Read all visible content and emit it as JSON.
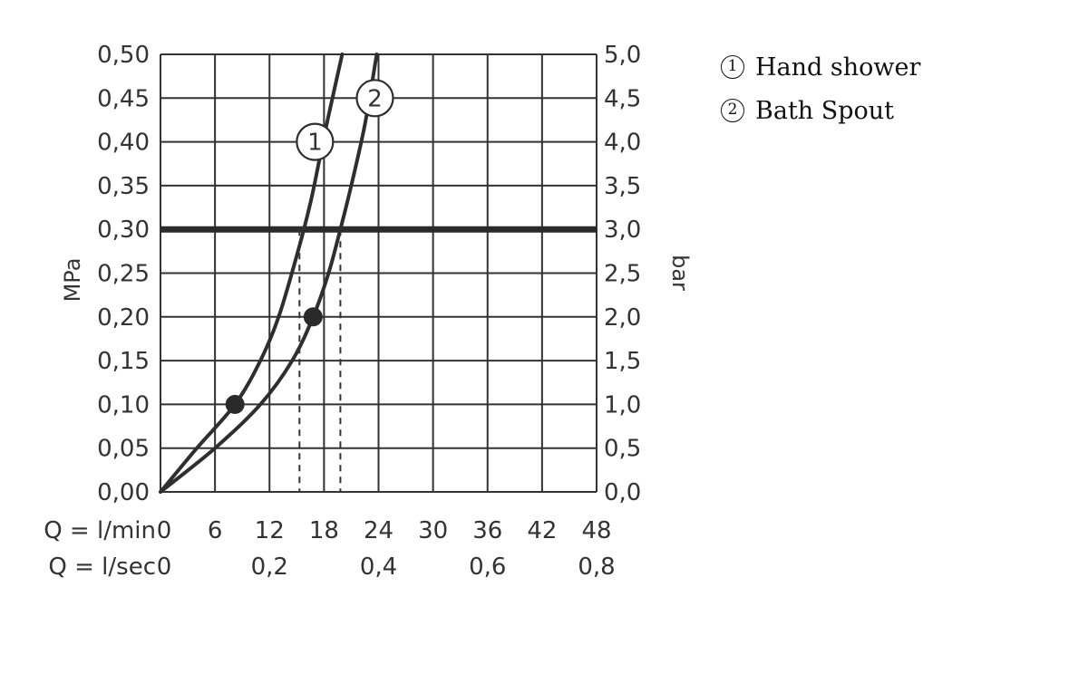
{
  "chart_data": {
    "type": "line",
    "title": "",
    "ylabel_left": "MPa",
    "ylabel_right": "bar",
    "x_rows": [
      {
        "label": "Q = l/min",
        "ticks": [
          "0",
          "6",
          "12",
          "18",
          "24",
          "30",
          "36",
          "42",
          "48"
        ],
        "values": [
          0,
          6,
          12,
          18,
          24,
          30,
          36,
          42,
          48
        ]
      },
      {
        "label": "Q = l/sec",
        "ticks": [
          "0",
          "0,2",
          "0,4",
          "0,6",
          "0,8"
        ],
        "values": [
          0,
          12,
          24,
          36,
          48
        ]
      }
    ],
    "xlim": [
      0,
      48
    ],
    "ylim": [
      0,
      0.5
    ],
    "y_left_ticks": [
      "0,00",
      "0,05",
      "0,10",
      "0,15",
      "0,20",
      "0,25",
      "0,30",
      "0,35",
      "0,40",
      "0,45",
      "0,50"
    ],
    "y_right_ticks": [
      "0,0",
      "0,5",
      "1,0",
      "1,5",
      "2,0",
      "2,5",
      "3,0",
      "3,5",
      "4,0",
      "4,5",
      "5,0"
    ],
    "grid": true,
    "series": [
      {
        "marker": "1",
        "name": "Hand shower",
        "x": [
          0,
          4,
          8.2,
          11,
          13,
          15,
          16.5,
          17.5,
          18.5,
          20
        ],
        "y": [
          0,
          0.05,
          0.1,
          0.15,
          0.2,
          0.27,
          0.33,
          0.38,
          0.43,
          0.5
        ]
      },
      {
        "marker": "2",
        "name": "Bath Spout",
        "x": [
          0,
          6,
          11,
          14.5,
          16.8,
          18.5,
          19.8,
          21,
          22.5,
          23.8
        ],
        "y": [
          0,
          0.05,
          0.1,
          0.15,
          0.2,
          0.25,
          0.3,
          0.35,
          0.42,
          0.5
        ]
      }
    ],
    "points": [
      {
        "series": "1",
        "x": 8.2,
        "y": 0.1
      },
      {
        "series": "2",
        "x": 16.8,
        "y": 0.2
      }
    ],
    "reference_line": {
      "y": 0.3
    },
    "drop_lines": [
      {
        "x": 15.3,
        "y": 0.3
      },
      {
        "x": 19.8,
        "y": 0.3
      }
    ],
    "curve_label_points": [
      {
        "text": "1",
        "x": 17,
        "y": 0.4
      },
      {
        "text": "2",
        "x": 23.6,
        "y": 0.45
      }
    ]
  },
  "legend": {
    "items": [
      {
        "marker": "1",
        "label": "Hand shower"
      },
      {
        "marker": "2",
        "label": "Bath Spout"
      }
    ]
  }
}
